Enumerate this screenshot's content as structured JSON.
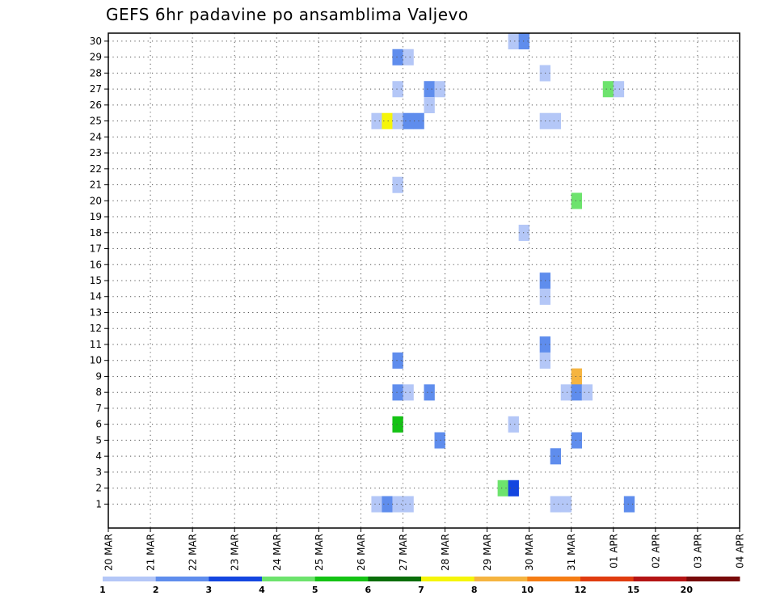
{
  "title": "GEFS 6hr padavine po ansamblima Valjevo",
  "chart_data": {
    "type": "heatmap",
    "title": "GEFS 6hr padavine po ansamblima Valjevo",
    "xlabel": "",
    "ylabel": "",
    "x_ticks": [
      "20 MAR",
      "21 MAR",
      "22 MAR",
      "23 MAR",
      "24 MAR",
      "25 MAR",
      "26 MAR",
      "27 MAR",
      "28 MAR",
      "29 MAR",
      "30 MAR",
      "31 MAR",
      "01 APR",
      "02 APR",
      "03 APR",
      "04 APR"
    ],
    "y_ticks": [
      1,
      2,
      3,
      4,
      5,
      6,
      7,
      8,
      9,
      10,
      11,
      12,
      13,
      14,
      15,
      16,
      17,
      18,
      19,
      20,
      21,
      22,
      23,
      24,
      25,
      26,
      27,
      28,
      29,
      30
    ],
    "grid": true,
    "steps_per_day": 4,
    "color_levels": [
      1,
      2,
      3,
      4,
      5,
      6,
      7,
      8,
      10,
      12,
      15,
      20
    ],
    "colorbar_labels": [
      "1",
      "2",
      "3",
      "4",
      "5",
      "6",
      "7",
      "8",
      "10",
      "12",
      "15",
      "20"
    ],
    "colors": [
      "#b4c7f7",
      "#5f8ded",
      "#1446e0",
      "#6de36d",
      "#14c314",
      "#0a6e0a",
      "#f5f50a",
      "#f5b440",
      "#f57d14",
      "#e03c0f",
      "#b41414",
      "#780a0a"
    ],
    "cells": [
      [
        1,
        25,
        0
      ],
      [
        1,
        26,
        1
      ],
      [
        1,
        27,
        0
      ],
      [
        1,
        28,
        0
      ],
      [
        30,
        38,
        0
      ],
      [
        30,
        39,
        1
      ],
      [
        1,
        49,
        1
      ],
      [
        1,
        98,
        0
      ],
      [
        29,
        27,
        1
      ],
      [
        29,
        28,
        0
      ],
      [
        29,
        72,
        0
      ],
      [
        29,
        94,
        0
      ],
      [
        28,
        41,
        0
      ],
      [
        28,
        77,
        0
      ],
      [
        28,
        78,
        1
      ],
      [
        28,
        84,
        0
      ],
      [
        28,
        97,
        2
      ],
      [
        28,
        98,
        2
      ],
      [
        28,
        99,
        0
      ],
      [
        28,
        100,
        1
      ],
      [
        28,
        115,
        0
      ],
      [
        28,
        116,
        1
      ],
      [
        28,
        120,
        0
      ],
      [
        28,
        121,
        5
      ],
      [
        28,
        122,
        1
      ],
      [
        27,
        27,
        0
      ],
      [
        27,
        30,
        1
      ],
      [
        27,
        31,
        0
      ],
      [
        27,
        47,
        3
      ],
      [
        27,
        48,
        0
      ],
      [
        27,
        118,
        6
      ],
      [
        26,
        30,
        0
      ],
      [
        26,
        100,
        0
      ],
      [
        26,
        101,
        4
      ],
      [
        26,
        120,
        2
      ],
      [
        26,
        121,
        1
      ],
      [
        26,
        124,
        1
      ],
      [
        26,
        125,
        1
      ],
      [
        25,
        25,
        0
      ],
      [
        25,
        26,
        6
      ],
      [
        25,
        27,
        0
      ],
      [
        25,
        28,
        1
      ],
      [
        25,
        29,
        1
      ],
      [
        25,
        41,
        0
      ],
      [
        25,
        42,
        0
      ],
      [
        25,
        122,
        0
      ],
      [
        25,
        125,
        1
      ],
      [
        24,
        72,
        0
      ],
      [
        24,
        108,
        2
      ],
      [
        24,
        109,
        3
      ],
      [
        24,
        124,
        3
      ],
      [
        24,
        125,
        2
      ],
      [
        24,
        126,
        1
      ],
      [
        24,
        127,
        1
      ],
      [
        24,
        128,
        5
      ],
      [
        23,
        68,
        0
      ],
      [
        23,
        69,
        0
      ],
      [
        23,
        78,
        5
      ],
      [
        23,
        79,
        1
      ],
      [
        23,
        80,
        1
      ],
      [
        23,
        81,
        1
      ],
      [
        23,
        122,
        0
      ],
      [
        23,
        123,
        0
      ],
      [
        22,
        74,
        2
      ],
      [
        22,
        76,
        0
      ],
      [
        22,
        97,
        2
      ],
      [
        22,
        98,
        1
      ],
      [
        21,
        27,
        0
      ],
      [
        21,
        65,
        2
      ],
      [
        21,
        74,
        2
      ],
      [
        21,
        75,
        1
      ],
      [
        21,
        76,
        1
      ],
      [
        21,
        77,
        1
      ],
      [
        21,
        78,
        1
      ],
      [
        21,
        79,
        4
      ],
      [
        21,
        80,
        7
      ],
      [
        21,
        115,
        0
      ],
      [
        21,
        123,
        0
      ],
      [
        20,
        44,
        3
      ],
      [
        20,
        98,
        3
      ],
      [
        20,
        120,
        0
      ],
      [
        20,
        121,
        1
      ],
      [
        20,
        122,
        2
      ],
      [
        20,
        123,
        2
      ],
      [
        20,
        124,
        0
      ],
      [
        20,
        125,
        0
      ],
      [
        19,
        74,
        3
      ],
      [
        19,
        75,
        2
      ],
      [
        19,
        131,
        1
      ],
      [
        18,
        39,
        0
      ],
      [
        18,
        103,
        5
      ],
      [
        18,
        104,
        2
      ],
      [
        18,
        108,
        0
      ],
      [
        17,
        82,
        1
      ],
      [
        17,
        83,
        1
      ],
      [
        16,
        109,
        7
      ],
      [
        16,
        112,
        0
      ],
      [
        16,
        113,
        0
      ],
      [
        15,
        41,
        1
      ],
      [
        15,
        72,
        0
      ],
      [
        15,
        73,
        3
      ],
      [
        15,
        74,
        1
      ],
      [
        14,
        41,
        0
      ],
      [
        14,
        99,
        0
      ],
      [
        14,
        119,
        7
      ],
      [
        14,
        120,
        1
      ],
      [
        14,
        121,
        2
      ],
      [
        14,
        122,
        1
      ],
      [
        14,
        123,
        2
      ],
      [
        14,
        124,
        4
      ],
      [
        14,
        125,
        2
      ],
      [
        14,
        126,
        0
      ],
      [
        14,
        127,
        0
      ],
      [
        14,
        128,
        0
      ],
      [
        12,
        71,
        0
      ],
      [
        12,
        90,
        0
      ],
      [
        12,
        101,
        2
      ],
      [
        12,
        105,
        0
      ],
      [
        12,
        113,
        2
      ],
      [
        12,
        114,
        1
      ],
      [
        11,
        41,
        1
      ],
      [
        11,
        70,
        1
      ],
      [
        11,
        78,
        2
      ],
      [
        11,
        79,
        2
      ],
      [
        10,
        27,
        1
      ],
      [
        10,
        41,
        0
      ],
      [
        10,
        74,
        0
      ],
      [
        9,
        44,
        7
      ],
      [
        8,
        27,
        1
      ],
      [
        8,
        28,
        0
      ],
      [
        8,
        30,
        1
      ],
      [
        8,
        43,
        0
      ],
      [
        8,
        44,
        1
      ],
      [
        8,
        45,
        0
      ],
      [
        8,
        68,
        0
      ],
      [
        8,
        102,
        7
      ],
      [
        8,
        106,
        0
      ],
      [
        7,
        101,
        2
      ],
      [
        7,
        102,
        4
      ],
      [
        6,
        27,
        4
      ],
      [
        6,
        38,
        0
      ],
      [
        6,
        106,
        0
      ],
      [
        6,
        109,
        10
      ],
      [
        5,
        31,
        1
      ],
      [
        5,
        44,
        1
      ],
      [
        5,
        69,
        1
      ],
      [
        5,
        105,
        0
      ],
      [
        5,
        106,
        4
      ],
      [
        5,
        122,
        0
      ],
      [
        5,
        126,
        1
      ],
      [
        5,
        127,
        7
      ],
      [
        4,
        42,
        1
      ],
      [
        4,
        73,
        1
      ],
      [
        4,
        74,
        8
      ],
      [
        4,
        75,
        1
      ],
      [
        4,
        112,
        1
      ],
      [
        3,
        78,
        4
      ],
      [
        3,
        79,
        0
      ],
      [
        2,
        37,
        3
      ],
      [
        2,
        38,
        2
      ],
      [
        2,
        78,
        0
      ],
      [
        2,
        82,
        0
      ],
      [
        2,
        110,
        1
      ],
      [
        2,
        111,
        1
      ],
      [
        2,
        115,
        0
      ],
      [
        2,
        123,
        0
      ],
      [
        2,
        124,
        1
      ],
      [
        1,
        42,
        0
      ],
      [
        1,
        43,
        0
      ],
      [
        1,
        75,
        2
      ],
      [
        1,
        102,
        1
      ],
      [
        1,
        103,
        1
      ],
      [
        0,
        75,
        4
      ],
      [
        0,
        76,
        8
      ],
      [
        0,
        119,
        1
      ],
      [
        0,
        120,
        8
      ],
      [
        0,
        121,
        5
      ],
      [
        0,
        122,
        8
      ],
      [
        0,
        123,
        9
      ],
      [
        0,
        124,
        8
      ],
      [
        0,
        125,
        8
      ],
      [
        0,
        126,
        5
      ],
      [
        0,
        127,
        8
      ]
    ]
  }
}
